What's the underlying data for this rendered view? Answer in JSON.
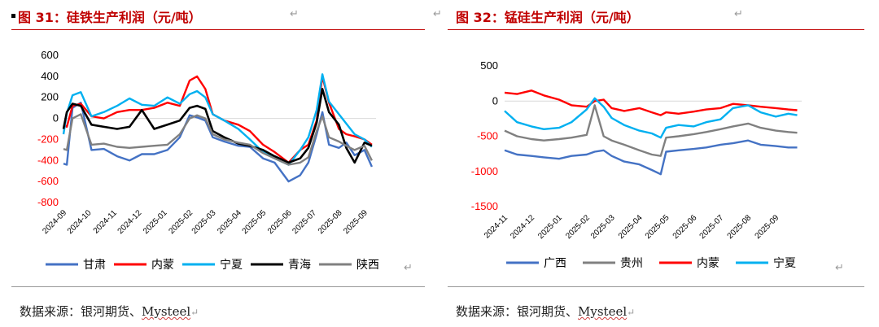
{
  "charts": [
    {
      "title": "图 31：硅铁生产利润（元/吨）",
      "source_prefix": "数据来源：银河期货、",
      "source_brand": "Mysteel"
    },
    {
      "title": "图 32：锰硅生产利润（元/吨）",
      "source_prefix": "数据来源：银河期货、",
      "source_brand": "Mysteel"
    }
  ],
  "chart_data": [
    {
      "type": "line",
      "title": "图 31：硅铁生产利润（元/吨）",
      "ylim": [
        -800,
        600
      ],
      "yticks": [
        600,
        400,
        200,
        0,
        -200,
        -400,
        -600,
        -800
      ],
      "x_start": "2024-09-01",
      "x_end": "2025-09-15",
      "x_tick_labels": [
        "2024-09",
        "2024-10",
        "2024-11",
        "2024-12",
        "2025-01",
        "2025-02",
        "2025-03",
        "2025-04",
        "2025-05",
        "2025-06",
        "2025-07",
        "2025-08",
        "2025-09"
      ],
      "x_tick_dates": [
        "2024-09-01",
        "2024-10-01",
        "2024-11-01",
        "2024-12-01",
        "2025-01-01",
        "2025-02-01",
        "2025-03-01",
        "2025-04-01",
        "2025-05-01",
        "2025-06-01",
        "2025-07-01",
        "2025-08-01",
        "2025-09-01"
      ],
      "negative_tick_color": "#ff0000",
      "legend_position": "bottom",
      "series": [
        {
          "name": "甘肃",
          "color": "#4472c4",
          "x": [
            "2024-09-01",
            "2024-09-05",
            "2024-09-12",
            "2024-09-22",
            "2024-10-05",
            "2024-10-20",
            "2024-11-05",
            "2024-11-20",
            "2024-12-05",
            "2024-12-20",
            "2025-01-05",
            "2025-01-20",
            "2025-02-01",
            "2025-02-10",
            "2025-02-20",
            "2025-03-01",
            "2025-03-15",
            "2025-04-01",
            "2025-04-15",
            "2025-05-01",
            "2025-05-15",
            "2025-06-01",
            "2025-06-15",
            "2025-06-25",
            "2025-07-05",
            "2025-07-12",
            "2025-07-20",
            "2025-08-01",
            "2025-08-10",
            "2025-08-20",
            "2025-09-01",
            "2025-09-10"
          ],
          "y": [
            -430,
            -440,
            100,
            150,
            -300,
            -290,
            -360,
            -400,
            -340,
            -340,
            -300,
            -180,
            30,
            10,
            -20,
            -180,
            -220,
            -260,
            -270,
            -380,
            -420,
            -600,
            -540,
            -420,
            -150,
            60,
            -250,
            -280,
            -230,
            -350,
            -300,
            -460
          ]
        },
        {
          "name": "内蒙",
          "color": "#ff0000",
          "x": [
            "2024-09-01",
            "2024-09-05",
            "2024-09-12",
            "2024-09-22",
            "2024-10-05",
            "2024-10-20",
            "2024-11-05",
            "2024-11-20",
            "2024-12-05",
            "2024-12-20",
            "2025-01-05",
            "2025-01-20",
            "2025-02-01",
            "2025-02-10",
            "2025-02-20",
            "2025-03-01",
            "2025-03-15",
            "2025-04-01",
            "2025-04-15",
            "2025-05-01",
            "2025-05-15",
            "2025-06-01",
            "2025-06-15",
            "2025-06-25",
            "2025-07-05",
            "2025-07-12",
            "2025-07-20",
            "2025-08-01",
            "2025-08-10",
            "2025-08-20",
            "2025-09-01",
            "2025-09-10"
          ],
          "y": [
            -60,
            -80,
            120,
            140,
            20,
            0,
            60,
            80,
            80,
            100,
            150,
            120,
            360,
            400,
            280,
            40,
            -20,
            -60,
            -120,
            -250,
            -320,
            -420,
            -300,
            -250,
            -20,
            400,
            150,
            -100,
            -150,
            -170,
            -200,
            -250
          ]
        },
        {
          "name": "宁夏",
          "color": "#00b0f0",
          "x": [
            "2024-09-01",
            "2024-09-05",
            "2024-09-12",
            "2024-09-22",
            "2024-10-05",
            "2024-10-20",
            "2024-11-05",
            "2024-11-20",
            "2024-12-05",
            "2024-12-20",
            "2025-01-05",
            "2025-01-20",
            "2025-02-01",
            "2025-02-10",
            "2025-02-20",
            "2025-03-01",
            "2025-03-15",
            "2025-04-01",
            "2025-04-15",
            "2025-05-01",
            "2025-05-15",
            "2025-06-01",
            "2025-06-15",
            "2025-06-25",
            "2025-07-05",
            "2025-07-12",
            "2025-07-20",
            "2025-08-01",
            "2025-08-10",
            "2025-08-20",
            "2025-09-01",
            "2025-09-10"
          ],
          "y": [
            -150,
            50,
            220,
            250,
            20,
            60,
            120,
            190,
            130,
            120,
            200,
            140,
            230,
            260,
            200,
            40,
            -20,
            -100,
            -200,
            -320,
            -380,
            -440,
            -300,
            -180,
            80,
            420,
            160,
            40,
            -50,
            -150,
            -200,
            -270
          ]
        },
        {
          "name": "青海",
          "color": "#000000",
          "x": [
            "2024-09-01",
            "2024-09-05",
            "2024-09-12",
            "2024-09-22",
            "2024-10-05",
            "2024-10-20",
            "2024-11-05",
            "2024-11-20",
            "2024-12-05",
            "2024-12-20",
            "2025-01-05",
            "2025-01-20",
            "2025-02-01",
            "2025-02-10",
            "2025-02-20",
            "2025-03-01",
            "2025-03-15",
            "2025-04-01",
            "2025-04-15",
            "2025-05-01",
            "2025-05-15",
            "2025-06-01",
            "2025-06-15",
            "2025-06-25",
            "2025-07-05",
            "2025-07-12",
            "2025-07-20",
            "2025-08-01",
            "2025-08-10",
            "2025-08-20",
            "2025-09-01",
            "2025-09-10"
          ],
          "y": [
            -100,
            60,
            140,
            120,
            -60,
            -80,
            -100,
            -80,
            80,
            -100,
            -60,
            -20,
            100,
            120,
            90,
            -120,
            -180,
            -240,
            -260,
            -300,
            -360,
            -420,
            -380,
            -280,
            -40,
            280,
            60,
            -60,
            -280,
            -420,
            -230,
            -260
          ]
        },
        {
          "name": "陕西",
          "color": "#808080",
          "x": [
            "2024-09-01",
            "2024-09-05",
            "2024-09-12",
            "2024-09-22",
            "2024-10-05",
            "2024-10-20",
            "2024-11-05",
            "2024-11-20",
            "2024-12-05",
            "2024-12-20",
            "2025-01-05",
            "2025-01-20",
            "2025-02-01",
            "2025-02-10",
            "2025-02-20",
            "2025-03-01",
            "2025-03-15",
            "2025-04-01",
            "2025-04-15",
            "2025-05-01",
            "2025-05-15",
            "2025-06-01",
            "2025-06-15",
            "2025-06-25",
            "2025-07-05",
            "2025-07-12",
            "2025-07-20",
            "2025-08-01",
            "2025-08-10",
            "2025-08-20",
            "2025-09-01",
            "2025-09-10"
          ],
          "y": [
            -290,
            -300,
            0,
            40,
            -250,
            -240,
            -270,
            -280,
            -270,
            -260,
            -250,
            -150,
            0,
            30,
            0,
            -150,
            -200,
            -230,
            -250,
            -330,
            -380,
            -440,
            -420,
            -370,
            -120,
            20,
            -180,
            -220,
            -260,
            -300,
            -260,
            -400
          ]
        }
      ]
    },
    {
      "type": "line",
      "title": "图 32：锰硅生产利润（元/吨）",
      "ylim": [
        -1500,
        500
      ],
      "yticks": [
        500,
        0,
        -500,
        -1000,
        -1500
      ],
      "x_start": "2024-11-01",
      "x_end": "2025-09-30",
      "x_tick_labels": [
        "2024-11",
        "2024-12",
        "2025-01",
        "2025-02",
        "2025-03",
        "2025-04",
        "2025-05",
        "2025-06",
        "2025-07",
        "2025-08",
        "2025-09"
      ],
      "x_tick_dates": [
        "2024-11-01",
        "2024-12-01",
        "2025-01-01",
        "2025-02-01",
        "2025-03-01",
        "2025-04-01",
        "2025-05-01",
        "2025-06-01",
        "2025-07-01",
        "2025-08-01",
        "2025-09-01"
      ],
      "negative_tick_color": "#ff0000",
      "legend_position": "bottom",
      "series": [
        {
          "name": "广西",
          "color": "#4472c4",
          "x": [
            "2024-11-01",
            "2024-11-15",
            "2024-12-01",
            "2024-12-15",
            "2025-01-01",
            "2025-01-15",
            "2025-02-01",
            "2025-02-10",
            "2025-02-20",
            "2025-03-01",
            "2025-03-15",
            "2025-04-01",
            "2025-04-15",
            "2025-04-25",
            "2025-05-01",
            "2025-05-15",
            "2025-06-01",
            "2025-06-15",
            "2025-07-01",
            "2025-07-15",
            "2025-08-01",
            "2025-08-15",
            "2025-09-01",
            "2025-09-15",
            "2025-09-25"
          ],
          "y": [
            -700,
            -760,
            -780,
            -800,
            -820,
            -780,
            -760,
            -720,
            -700,
            -780,
            -860,
            -900,
            -980,
            -1040,
            -720,
            -700,
            -680,
            -660,
            -620,
            -600,
            -560,
            -620,
            -640,
            -660,
            -660
          ]
        },
        {
          "name": "贵州",
          "color": "#808080",
          "x": [
            "2024-11-01",
            "2024-11-15",
            "2024-12-01",
            "2024-12-15",
            "2025-01-01",
            "2025-01-15",
            "2025-02-01",
            "2025-02-10",
            "2025-02-20",
            "2025-03-01",
            "2025-03-15",
            "2025-04-01",
            "2025-04-15",
            "2025-04-25",
            "2025-05-01",
            "2025-05-15",
            "2025-06-01",
            "2025-06-15",
            "2025-07-01",
            "2025-07-15",
            "2025-08-01",
            "2025-08-15",
            "2025-09-01",
            "2025-09-15",
            "2025-09-25"
          ],
          "y": [
            -420,
            -500,
            -540,
            -560,
            -540,
            -520,
            -480,
            -60,
            -500,
            -560,
            -620,
            -700,
            -760,
            -780,
            -520,
            -500,
            -470,
            -440,
            -400,
            -360,
            -320,
            -380,
            -420,
            -440,
            -450
          ]
        },
        {
          "name": "内蒙",
          "color": "#ff0000",
          "x": [
            "2024-11-01",
            "2024-11-15",
            "2024-12-01",
            "2024-12-15",
            "2025-01-01",
            "2025-01-15",
            "2025-02-01",
            "2025-02-10",
            "2025-02-20",
            "2025-03-01",
            "2025-03-15",
            "2025-04-01",
            "2025-04-15",
            "2025-04-25",
            "2025-05-01",
            "2025-05-15",
            "2025-06-01",
            "2025-06-15",
            "2025-07-01",
            "2025-07-15",
            "2025-08-01",
            "2025-08-15",
            "2025-09-01",
            "2025-09-15",
            "2025-09-25"
          ],
          "y": [
            120,
            100,
            150,
            80,
            20,
            -60,
            -80,
            0,
            20,
            -100,
            -140,
            -100,
            -160,
            -200,
            -160,
            -180,
            -150,
            -120,
            -100,
            -40,
            -60,
            -80,
            -100,
            -120,
            -130
          ]
        },
        {
          "name": "宁夏",
          "color": "#00b0f0",
          "x": [
            "2024-11-01",
            "2024-11-15",
            "2024-12-01",
            "2024-12-15",
            "2025-01-01",
            "2025-01-15",
            "2025-02-01",
            "2025-02-10",
            "2025-02-20",
            "2025-03-01",
            "2025-03-15",
            "2025-04-01",
            "2025-04-15",
            "2025-04-25",
            "2025-05-01",
            "2025-05-15",
            "2025-06-01",
            "2025-06-15",
            "2025-07-01",
            "2025-07-15",
            "2025-08-01",
            "2025-08-15",
            "2025-09-01",
            "2025-09-15",
            "2025-09-25"
          ],
          "y": [
            -140,
            -300,
            -360,
            -400,
            -380,
            -300,
            -120,
            40,
            -80,
            -240,
            -340,
            -420,
            -460,
            -520,
            -380,
            -340,
            -360,
            -300,
            -260,
            -100,
            -60,
            -160,
            -220,
            -180,
            -200
          ]
        }
      ]
    }
  ]
}
